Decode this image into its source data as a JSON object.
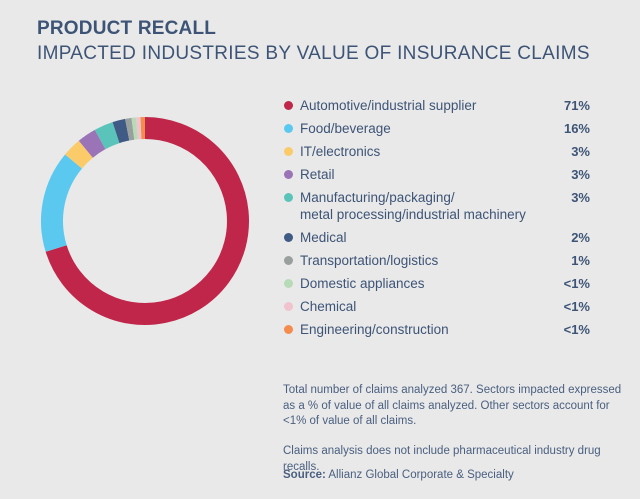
{
  "header": {
    "title": "PRODUCT RECALL",
    "subtitle": "IMPACTED INDUSTRIES BY VALUE OF INSURANCE CLAIMS"
  },
  "chart_data": {
    "type": "pie",
    "donut": true,
    "legend_placement": "right",
    "categories": [
      "Automotive/industrial supplier",
      "Food/beverage",
      "IT/electronics",
      "Retail",
      "Manufacturing/packaging/\nmetal processing/industrial machinery",
      "Medical",
      "Transportation/logistics",
      "Domestic appliances",
      "Chemical",
      "Engineering/construction"
    ],
    "labels": [
      "71%",
      "16%",
      "3%",
      "3%",
      "3%",
      "2%",
      "1%",
      "<1%",
      "<1%",
      "<1%"
    ],
    "values": [
      71,
      16,
      3,
      3,
      3,
      2,
      1,
      0.7,
      0.7,
      0.7
    ],
    "colors": [
      "#c0254a",
      "#5bc8f0",
      "#fbcb6a",
      "#9b73b7",
      "#5bc4ba",
      "#3e5a85",
      "#9aa09d",
      "#b7dbb6",
      "#f1c3ce",
      "#f38c4d"
    ]
  },
  "notes": {
    "note1": "Total number of claims analyzed 367. Sectors impacted expressed as a % of value of all claims analyzed. Other sectors account for <1% of value of all claims.",
    "note2": "Claims analysis does not include pharmaceutical industry drug recalls.",
    "source_label": "Source:",
    "source_text": " Allianz Global Corporate & Specialty"
  }
}
